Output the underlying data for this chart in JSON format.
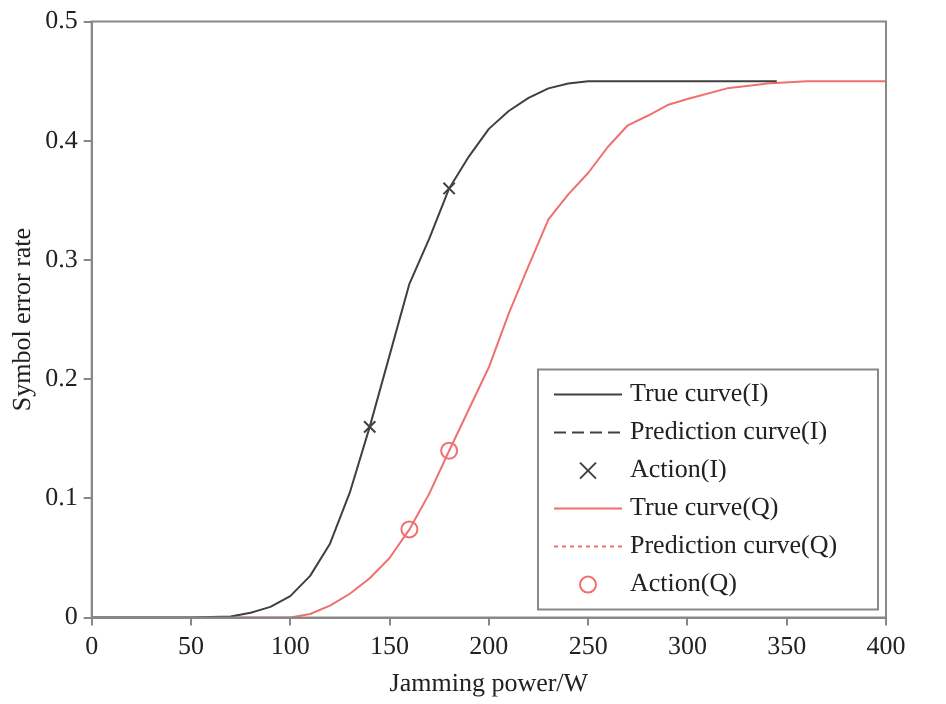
{
  "chart_data": {
    "type": "line",
    "xlabel": "Jamming power/W",
    "ylabel": "Symbol error rate",
    "xlim": [
      0,
      400
    ],
    "xticks": [
      0,
      50,
      100,
      150,
      200,
      250,
      300,
      350,
      400
    ],
    "ylim": [
      0,
      0.5
    ],
    "yticks": [
      0,
      0.1,
      0.2,
      0.3,
      0.4,
      0.5
    ],
    "grid": false,
    "legend": "bottom right",
    "series": [
      {
        "name": "True curve(I)",
        "color": "#404040",
        "type": "line",
        "line_style": "solid",
        "x": [
          0,
          50,
          70,
          80,
          90,
          100,
          110,
          120,
          130,
          140,
          150,
          160,
          170,
          180,
          190,
          200,
          210,
          220,
          230,
          240,
          250,
          260,
          280,
          300,
          345
        ],
        "values": [
          0,
          0,
          0.001,
          0.004,
          0.009,
          0.018,
          0.035,
          0.062,
          0.105,
          0.16,
          0.22,
          0.28,
          0.318,
          0.36,
          0.387,
          0.41,
          0.425,
          0.436,
          0.444,
          0.448,
          0.45,
          0.45,
          0.45,
          0.45,
          0.45
        ]
      },
      {
        "name": "Prediction curve(I)",
        "color": "#404040",
        "type": "line",
        "line_style": "dashed"
      },
      {
        "name": "Action(I)",
        "color": "#404040",
        "type": "scatter",
        "marker": "cross",
        "x": [
          140,
          180
        ],
        "values": [
          0.16,
          0.36
        ]
      },
      {
        "name": "True curve(Q)",
        "color": "#f07070",
        "type": "line",
        "line_style": "solid",
        "x": [
          0,
          50,
          100,
          110,
          120,
          130,
          140,
          150,
          160,
          170,
          180,
          190,
          200,
          210,
          220,
          230,
          240,
          250,
          260,
          270,
          280,
          290,
          300,
          320,
          340,
          360,
          400
        ],
        "values": [
          0,
          0,
          0,
          0.003,
          0.01,
          0.02,
          0.033,
          0.05,
          0.074,
          0.104,
          0.14,
          0.175,
          0.21,
          0.255,
          0.295,
          0.334,
          0.355,
          0.373,
          0.395,
          0.413,
          0.421,
          0.43,
          0.435,
          0.444,
          0.448,
          0.45,
          0.45
        ]
      },
      {
        "name": "Prediction curve(Q)",
        "color": "#f07070",
        "type": "line",
        "line_style": "dotted"
      },
      {
        "name": "Action(Q)",
        "color": "#f07070",
        "type": "scatter",
        "marker": "circle",
        "x": [
          160,
          180
        ],
        "values": [
          0.074,
          0.14
        ]
      }
    ]
  }
}
